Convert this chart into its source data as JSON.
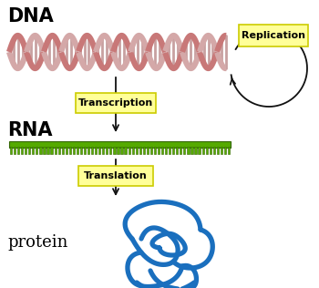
{
  "bg_color": "#ffffff",
  "dna_label": "DNA",
  "rna_label": "RNA",
  "protein_label": "protein",
  "transcription_label": "Transcription",
  "translation_label": "Translation",
  "replication_label": "Replication",
  "dna_color1": "#c87878",
  "dna_color2": "#d4a8a8",
  "dna_rung_color": "#c8a0a0",
  "rna_color": "#55aa00",
  "rna_dark": "#336600",
  "protein_color": "#1a6fbe",
  "protein_fill": "#c8dff5",
  "arrow_color": "#111111",
  "label_box_color": "#ffff99",
  "label_box_edge": "#cccc00",
  "dna_amplitude": 18,
  "dna_wavelength": 38,
  "dna_lw": 4.5,
  "rung_lw": 2.0
}
